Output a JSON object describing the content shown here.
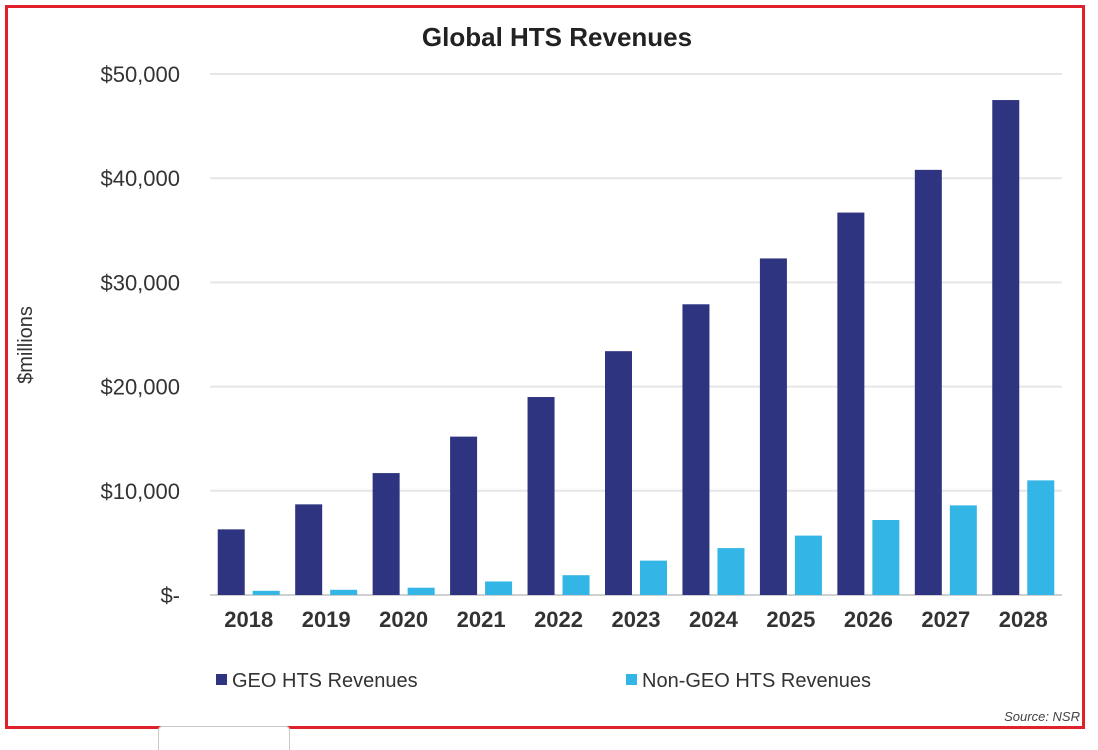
{
  "colors": {
    "frame": "#e0202a",
    "geo": "#2e3480",
    "non_geo": "#33b5e6",
    "grid": "#e6e6e6",
    "text": "#222222"
  },
  "chart_data": {
    "type": "bar",
    "title": "Global HTS Revenues",
    "ylabel": "$millions",
    "xlabel": "",
    "categories": [
      "2018",
      "2019",
      "2020",
      "2021",
      "2022",
      "2023",
      "2024",
      "2025",
      "2026",
      "2027",
      "2028"
    ],
    "series": [
      {
        "name": "GEO HTS Revenues",
        "color": "#2e3480",
        "values": [
          6300,
          8700,
          11700,
          15200,
          19000,
          23400,
          27900,
          32300,
          36700,
          40800,
          47500
        ]
      },
      {
        "name": "Non-GEO HTS Revenues",
        "color": "#33b5e6",
        "values": [
          400,
          500,
          700,
          1300,
          1900,
          3300,
          4500,
          5700,
          7200,
          8600,
          11000
        ]
      }
    ],
    "ylim": [
      0,
      50000
    ],
    "yticks": [
      {
        "value": 0,
        "label": "$-"
      },
      {
        "value": 10000,
        "label": "$10,000"
      },
      {
        "value": 20000,
        "label": "$20,000"
      },
      {
        "value": 30000,
        "label": "$30,000"
      },
      {
        "value": 40000,
        "label": "$40,000"
      },
      {
        "value": 50000,
        "label": "$50,000"
      }
    ],
    "grid": true,
    "legend_position": "bottom",
    "source": "Source: NSR"
  }
}
